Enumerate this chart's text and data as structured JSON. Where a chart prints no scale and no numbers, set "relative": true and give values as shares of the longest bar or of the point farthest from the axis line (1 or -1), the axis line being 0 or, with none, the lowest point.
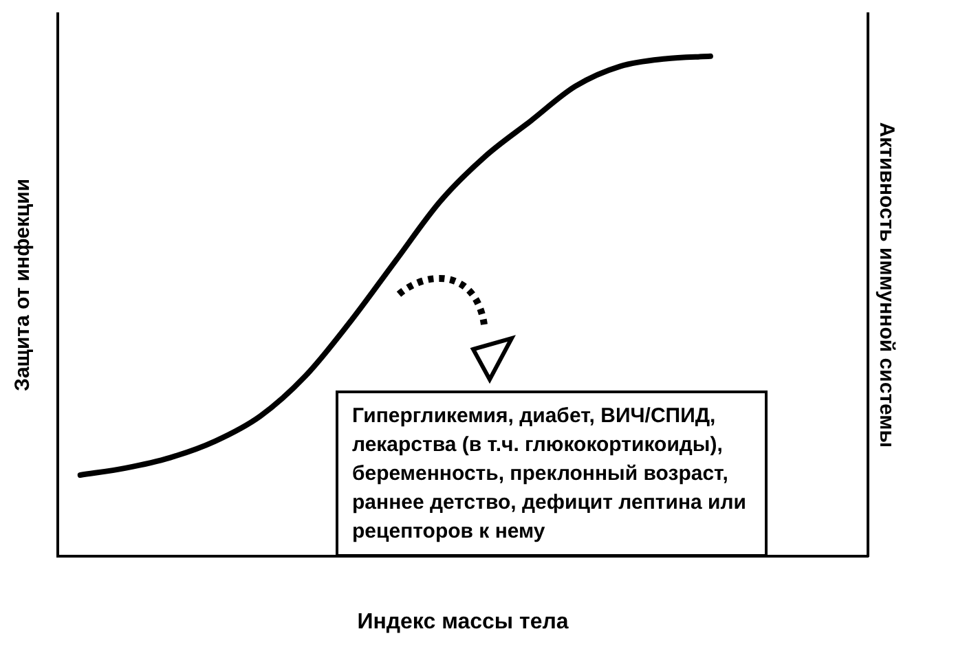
{
  "chart_data": {
    "type": "line",
    "relative": true,
    "xlabel": "Индекс массы тела",
    "ylabel": "Защита от инфекции",
    "y2label": "Активность иммунной системы",
    "categories": [
      null,
      null,
      null,
      null,
      null,
      null,
      null,
      null,
      null,
      null,
      null,
      null,
      null,
      null,
      null,
      null,
      null,
      null
    ],
    "series": [
      {
        "color": "#000000",
        "values": [
          0.162,
          0.176,
          0.197,
          0.23,
          0.28,
          0.36,
          0.469,
          0.59,
          0.71,
          0.8,
          0.87,
          0.94,
          0.98,
          0.995,
          1.0,
          null,
          null,
          null
        ]
      }
    ],
    "annotations": [
      "Гипергликемия, диабет, ВИЧ/СПИД, лекарства (в т.ч. глюкокортикоиды), беременность, преклонный возраст, раннее детство, дефицит лептина или рецепторов к нему"
    ],
    "legend": false,
    "grid": false,
    "marker": "none",
    "line_style": "solid"
  }
}
